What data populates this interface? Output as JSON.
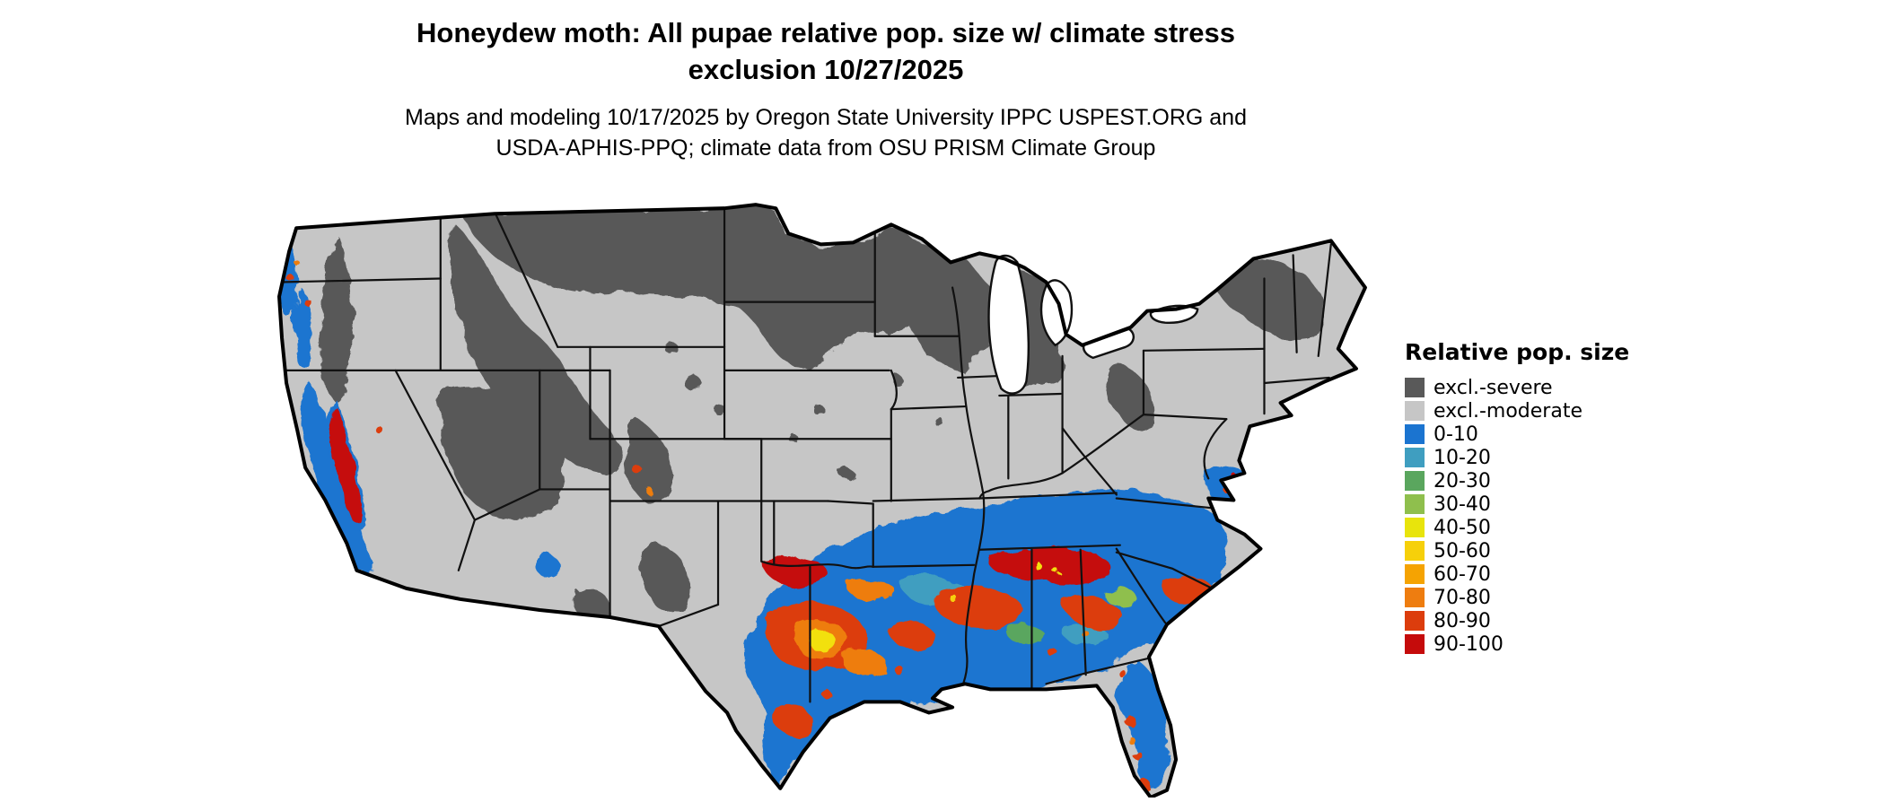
{
  "title": {
    "line1": "Honeydew moth: All pupae relative pop. size w/ climate stress",
    "line2": "exclusion 10/27/2025"
  },
  "subtitle": {
    "line1": "Maps and modeling 10/17/2025 by Oregon State University IPPC USPEST.ORG and",
    "line2": "USDA-APHIS-PPQ; climate data from OSU PRISM Climate Group"
  },
  "legend": {
    "title": "Relative pop. size",
    "items": [
      {
        "label": "excl.-severe",
        "color": "#595959"
      },
      {
        "label": "excl.-moderate",
        "color": "#c6c6c6"
      },
      {
        "label": "0-10",
        "color": "#1b74d0"
      },
      {
        "label": "10-20",
        "color": "#3f9ec0"
      },
      {
        "label": "20-30",
        "color": "#5aa65e"
      },
      {
        "label": "30-40",
        "color": "#8fbf4d"
      },
      {
        "label": "40-50",
        "color": "#e8e40c"
      },
      {
        "label": "50-60",
        "color": "#f6d00a"
      },
      {
        "label": "60-70",
        "color": "#f5a302"
      },
      {
        "label": "70-80",
        "color": "#ee7d10"
      },
      {
        "label": "80-90",
        "color": "#dc3d0d"
      },
      {
        "label": "90-100",
        "color": "#c50b0b"
      }
    ]
  },
  "map": {
    "region": "Continental United States",
    "description": "Raster map: severe exclusion (dark gray) across the northern tier, Rockies and Great Basin; moderate exclusion (light gray) across the central plains and northeast; relative population values (blue through red) across the southern U.S., Southeast, Florida and the Pacific coast"
  }
}
